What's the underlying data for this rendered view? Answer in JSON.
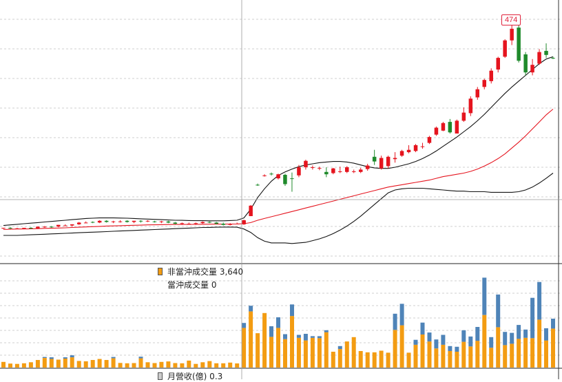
{
  "colors": {
    "up": "#e5141e",
    "down": "#1f8a2b",
    "ma": "#e5141e",
    "band": "#111111",
    "vol_non_daytrade": "#f39c12",
    "vol_daytrade": "#4f84b8",
    "grid": "#cfcfcf",
    "crosshair": "#9a9a9a"
  },
  "legend": {
    "non_daytrade_label": "非當沖成交量 3,640",
    "daytrade_label": "當沖成交量 0",
    "monthly_revenue_label": "月營收(億) 0.3"
  },
  "peak_label": "474",
  "chart_data": [
    {
      "type": "candlestick",
      "title": "",
      "grid": true,
      "series": [
        {
          "kind": "ohlc",
          "ohlc": [
            [
              117,
              118,
              116,
              118
            ],
            [
              118,
              119,
              116,
              117
            ],
            [
              117,
              118,
              116,
              117
            ],
            [
              117,
              118,
              116,
              118
            ],
            [
              118,
              119,
              116,
              117
            ],
            [
              117,
              120,
              116,
              120
            ],
            [
              119,
              121,
              118,
              120
            ],
            [
              120,
              121,
              118,
              119
            ],
            [
              120,
              123,
              119,
              123
            ],
            [
              122,
              124,
              121,
              122
            ],
            [
              122,
              124,
              120,
              124
            ],
            [
              124,
              128,
              123,
              127
            ],
            [
              127,
              129,
              126,
              127
            ],
            [
              128,
              129,
              126,
              127
            ],
            [
              127,
              131,
              126,
              130
            ],
            [
              130,
              131,
              127,
              128
            ],
            [
              128,
              130,
              126,
              129
            ],
            [
              129,
              131,
              127,
              129
            ],
            [
              130,
              131,
              127,
              128
            ],
            [
              128,
              130,
              126,
              130
            ],
            [
              130,
              131,
              127,
              129
            ],
            [
              129,
              131,
              128,
              130
            ],
            [
              129,
              130,
              127,
              128
            ],
            [
              128,
              130,
              126,
              129
            ],
            [
              129,
              130,
              126,
              127
            ],
            [
              127,
              128,
              124,
              125
            ],
            [
              125,
              127,
              123,
              126
            ],
            [
              125,
              127,
              124,
              125
            ],
            [
              125,
              127,
              123,
              126
            ],
            [
              126,
              129,
              125,
              128
            ],
            [
              128,
              129,
              126,
              127
            ],
            [
              127,
              128,
              124,
              125
            ],
            [
              125,
              127,
              122,
              123
            ],
            [
              123,
              126,
              122,
              125
            ],
            [
              125,
              127,
              124,
              125
            ],
            [
              124,
              132,
              123,
              131
            ],
            [
              138,
              157,
              138,
              156
            ],
            [
              192,
              194,
              190,
              191
            ],
            [
              208,
              210,
              206,
              208
            ],
            [
              211,
              213,
              208,
              210
            ],
            [
              203,
              211,
              201,
              210
            ],
            [
              209,
              211,
              190,
              193
            ],
            [
              203,
              213,
              180,
              202
            ],
            [
              208,
              226,
              205,
              222
            ],
            [
              222,
              235,
              218,
              233
            ],
            [
              222,
              225,
              218,
              222
            ],
            [
              220,
              223,
              217,
              221
            ],
            [
              214,
              222,
              205,
              210
            ],
            [
              212,
              221,
              210,
              220
            ],
            [
              214,
              223,
              212,
              215
            ],
            [
              214,
              224,
              212,
              222
            ],
            [
              214,
              218,
              212,
              215
            ],
            [
              214,
              221,
              212,
              218
            ],
            [
              219,
              228,
              216,
              225
            ],
            [
              240,
              252,
              226,
              232
            ],
            [
              220,
              242,
              218,
              238
            ],
            [
              224,
              242,
              220,
              240
            ],
            [
              236,
              248,
              230,
              238
            ],
            [
              242,
              252,
              240,
              250
            ],
            [
              248,
              260,
              246,
              252
            ],
            [
              250,
              262,
              248,
              260
            ],
            [
              258,
              264,
              254,
              258
            ],
            [
              264,
              276,
              262,
              274
            ],
            [
              278,
              292,
              276,
              290
            ],
            [
              285,
              300,
              284,
              298
            ],
            [
              300,
              305,
              280,
              282
            ],
            [
              280,
              304,
              280,
              302
            ],
            [
              302,
              325,
              300,
              316
            ],
            [
              315,
              344,
              310,
              340
            ],
            [
              342,
              360,
              338,
              356
            ],
            [
              360,
              374,
              356,
              372
            ],
            [
              370,
              392,
              366,
              388
            ],
            [
              390,
              412,
              385,
              410
            ],
            [
              412,
              442,
              410,
              440
            ],
            [
              440,
              474,
              432,
              460
            ],
            [
              462,
              468,
              402,
              405
            ],
            [
              416,
              420,
              380,
              385
            ],
            [
              385,
              408,
              380,
              398
            ],
            [
              400,
              425,
              398,
              420
            ],
            [
              422,
              435,
              410,
              415
            ],
            [
              410,
              412,
              408,
              409
            ]
          ]
        },
        {
          "name": "",
          "kind": "ma",
          "values": [
            115,
            115.5,
            116,
            116,
            116.2,
            116.5,
            117,
            117.3,
            117.6,
            118,
            118.5,
            119,
            119.5,
            120,
            120.5,
            121,
            121.3,
            121.6,
            122,
            122.3,
            122.6,
            123,
            123.2,
            123.4,
            123.6,
            123.7,
            123.8,
            123.9,
            124,
            124.1,
            124.2,
            124.3,
            124.4,
            124.5,
            124.6,
            125,
            127,
            131,
            134,
            137,
            140,
            143,
            146,
            149,
            152,
            155,
            158,
            161,
            164,
            167,
            170,
            173,
            176,
            179,
            182,
            185,
            188,
            190,
            192,
            194,
            196,
            198,
            200,
            203,
            206,
            208,
            210,
            212,
            215,
            219,
            224,
            230,
            237,
            245,
            255,
            265,
            276,
            288,
            300,
            312,
            322
          ]
        },
        {
          "name": "",
          "kind": "band_upper",
          "values": [
            122,
            123,
            124,
            125,
            126,
            127,
            128,
            129,
            130,
            131,
            132,
            133,
            134,
            134.5,
            135,
            135,
            135,
            134.8,
            134.5,
            134,
            133.5,
            133,
            132.5,
            132,
            131.5,
            131,
            130.8,
            130.5,
            130.3,
            130.2,
            130,
            130,
            130,
            130.5,
            131,
            135,
            150,
            170,
            185,
            198,
            208,
            214,
            219,
            223,
            226,
            228,
            230,
            231,
            232,
            232,
            231,
            229,
            226,
            223,
            221,
            220,
            220,
            222,
            225,
            228,
            232,
            237,
            243,
            250,
            258,
            266,
            274,
            283,
            292,
            302,
            313,
            325,
            337,
            349,
            360,
            370,
            380,
            390,
            400,
            408,
            412
          ]
        },
        {
          "name": "",
          "kind": "band_lower",
          "values": [
            105,
            105,
            105,
            105.5,
            106,
            106.5,
            107,
            107.5,
            108,
            108.5,
            109,
            109.5,
            110,
            110.5,
            111,
            111.5,
            112,
            112.5,
            113,
            113.5,
            114,
            114.5,
            115,
            115.5,
            116,
            116.5,
            117,
            117.5,
            118,
            118.5,
            118.7,
            119,
            119.2,
            119.3,
            119,
            116,
            110,
            101,
            95,
            92,
            92,
            92,
            91,
            92,
            93,
            96,
            99,
            103,
            108,
            114,
            121,
            129,
            138,
            148,
            158,
            168,
            178,
            183,
            185,
            186,
            186,
            186,
            185,
            184,
            183,
            182,
            181,
            181,
            180,
            180,
            180,
            179,
            179,
            179,
            179,
            180,
            183,
            188,
            195,
            203,
            212
          ]
        }
      ],
      "ylim": [
        60,
        500
      ]
    },
    {
      "type": "bar",
      "title": "",
      "stacked": true,
      "series": [
        {
          "name": "非當沖成交量",
          "values": [
            170,
            120,
            110,
            130,
            160,
            230,
            290,
            260,
            240,
            270,
            310,
            200,
            190,
            230,
            260,
            230,
            280,
            140,
            130,
            135,
            280,
            160,
            135,
            170,
            185,
            135,
            130,
            210,
            110,
            160,
            195,
            130,
            130,
            150,
            125,
            1200,
            1700,
            1040,
            1650,
            930,
            1200,
            860,
            1560,
            900,
            820,
            900,
            890,
            1070,
            480,
            560,
            790,
            920,
            500,
            460,
            460,
            510,
            450,
            1140,
            1280,
            450,
            690,
            1000,
            790,
            580,
            690,
            500,
            480,
            780,
            640,
            810,
            1590,
            600,
            1220,
            680,
            720,
            870,
            900,
            890,
            1450,
            820,
            1180
          ]
        },
        {
          "name": "當沖成交量",
          "values": [
            0,
            0,
            0,
            0,
            0,
            0,
            30,
            50,
            0,
            40,
            60,
            0,
            0,
            0,
            0,
            0,
            40,
            0,
            0,
            0,
            50,
            0,
            0,
            0,
            0,
            0,
            0,
            0,
            0,
            0,
            0,
            0,
            0,
            0,
            0,
            150,
            170,
            0,
            0,
            320,
            320,
            150,
            350,
            90,
            200,
            50,
            60,
            60,
            0,
            90,
            0,
            0,
            0,
            0,
            0,
            0,
            0,
            490,
            650,
            0,
            150,
            360,
            270,
            270,
            300,
            150,
            150,
            350,
            300,
            420,
            1130,
            320,
            990,
            400,
            330,
            420,
            250,
            1220,
            1140,
            370,
            300
          ]
        }
      ],
      "ylim": [
        0,
        3000
      ]
    }
  ]
}
